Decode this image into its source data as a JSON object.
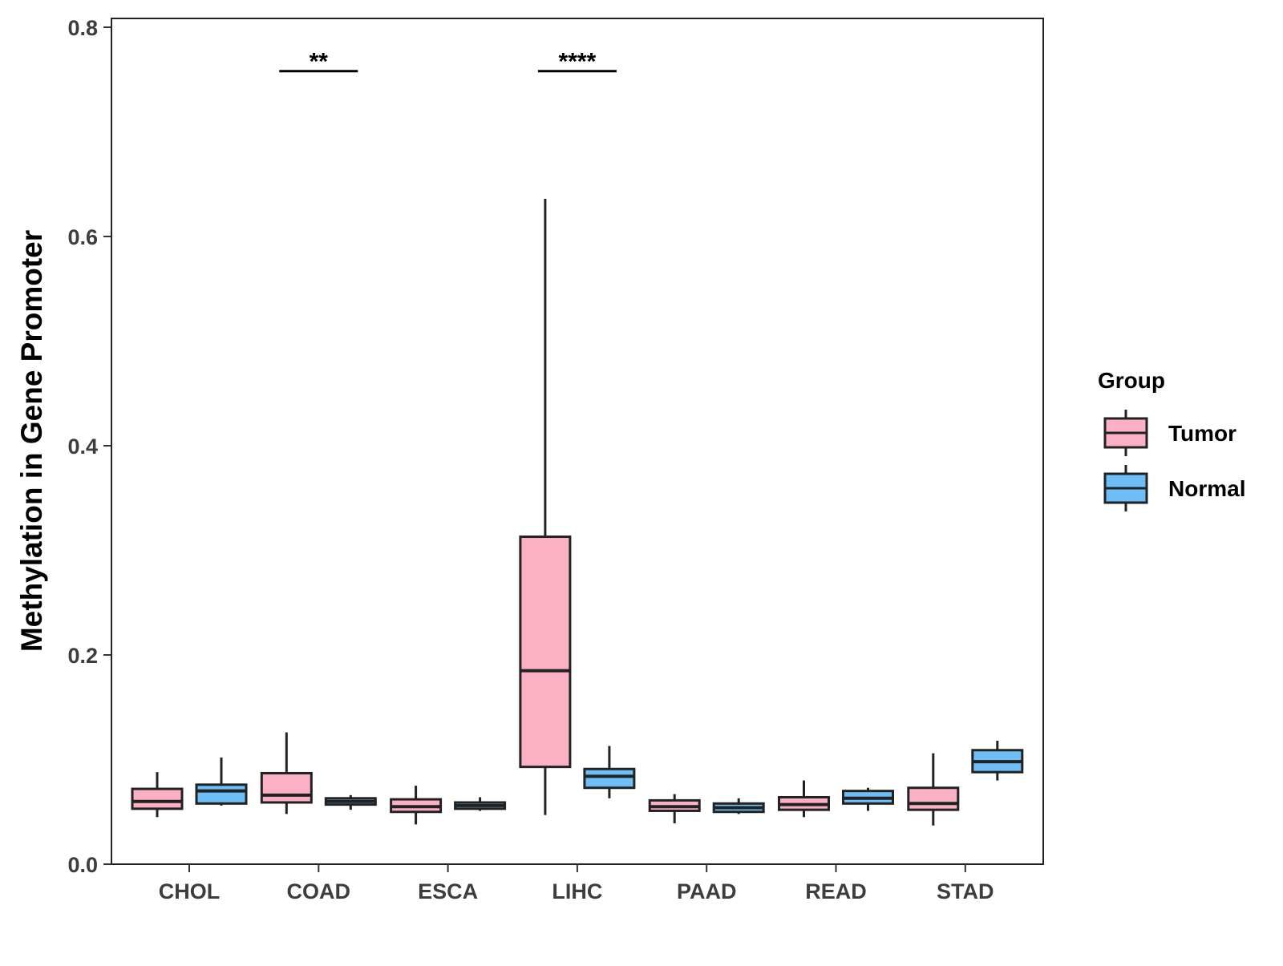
{
  "chart_data": {
    "type": "boxplot",
    "title": "",
    "xlabel": "",
    "ylabel": "Methylation in Gene Promoter",
    "ylim": [
      0,
      0.8
    ],
    "yticks": [
      "0.0",
      "0.2",
      "0.4",
      "0.6",
      "0.8"
    ],
    "categories": [
      "CHOL",
      "COAD",
      "ESCA",
      "LIHC",
      "PAAD",
      "READ",
      "STAD"
    ],
    "legend": {
      "title": "Group",
      "position": "right",
      "entries": [
        {
          "label": "Tumor",
          "color": "#fbb1c3"
        },
        {
          "label": "Normal",
          "color": "#6dbdf7"
        }
      ]
    },
    "series": [
      {
        "name": "Tumor",
        "color": "#fbb1c3",
        "boxes": [
          {
            "category": "CHOL",
            "min": 0.045,
            "q1": 0.053,
            "median": 0.06,
            "q3": 0.072,
            "max": 0.088
          },
          {
            "category": "COAD",
            "min": 0.048,
            "q1": 0.059,
            "median": 0.066,
            "q3": 0.087,
            "max": 0.126
          },
          {
            "category": "ESCA",
            "min": 0.038,
            "q1": 0.05,
            "median": 0.055,
            "q3": 0.062,
            "max": 0.075
          },
          {
            "category": "LIHC",
            "min": 0.047,
            "q1": 0.093,
            "median": 0.185,
            "q3": 0.313,
            "max": 0.636
          },
          {
            "category": "PAAD",
            "min": 0.039,
            "q1": 0.051,
            "median": 0.055,
            "q3": 0.061,
            "max": 0.067
          },
          {
            "category": "READ",
            "min": 0.045,
            "q1": 0.052,
            "median": 0.057,
            "q3": 0.064,
            "max": 0.08
          },
          {
            "category": "STAD",
            "min": 0.037,
            "q1": 0.052,
            "median": 0.058,
            "q3": 0.073,
            "max": 0.106
          }
        ]
      },
      {
        "name": "Normal",
        "color": "#6dbdf7",
        "boxes": [
          {
            "category": "CHOL",
            "min": 0.056,
            "q1": 0.058,
            "median": 0.07,
            "q3": 0.076,
            "max": 0.102
          },
          {
            "category": "COAD",
            "min": 0.052,
            "q1": 0.057,
            "median": 0.06,
            "q3": 0.063,
            "max": 0.066
          },
          {
            "category": "ESCA",
            "min": 0.051,
            "q1": 0.053,
            "median": 0.056,
            "q3": 0.059,
            "max": 0.064
          },
          {
            "category": "LIHC",
            "min": 0.063,
            "q1": 0.073,
            "median": 0.084,
            "q3": 0.091,
            "max": 0.113
          },
          {
            "category": "PAAD",
            "min": 0.048,
            "q1": 0.05,
            "median": 0.054,
            "q3": 0.058,
            "max": 0.063
          },
          {
            "category": "READ",
            "min": 0.051,
            "q1": 0.058,
            "median": 0.063,
            "q3": 0.07,
            "max": 0.073
          },
          {
            "category": "STAD",
            "min": 0.08,
            "q1": 0.088,
            "median": 0.098,
            "q3": 0.109,
            "max": 0.118
          }
        ]
      }
    ],
    "annotations": [
      {
        "category": "COAD",
        "label": "**",
        "y": 0.755
      },
      {
        "category": "LIHC",
        "label": "****",
        "y": 0.755
      }
    ]
  }
}
